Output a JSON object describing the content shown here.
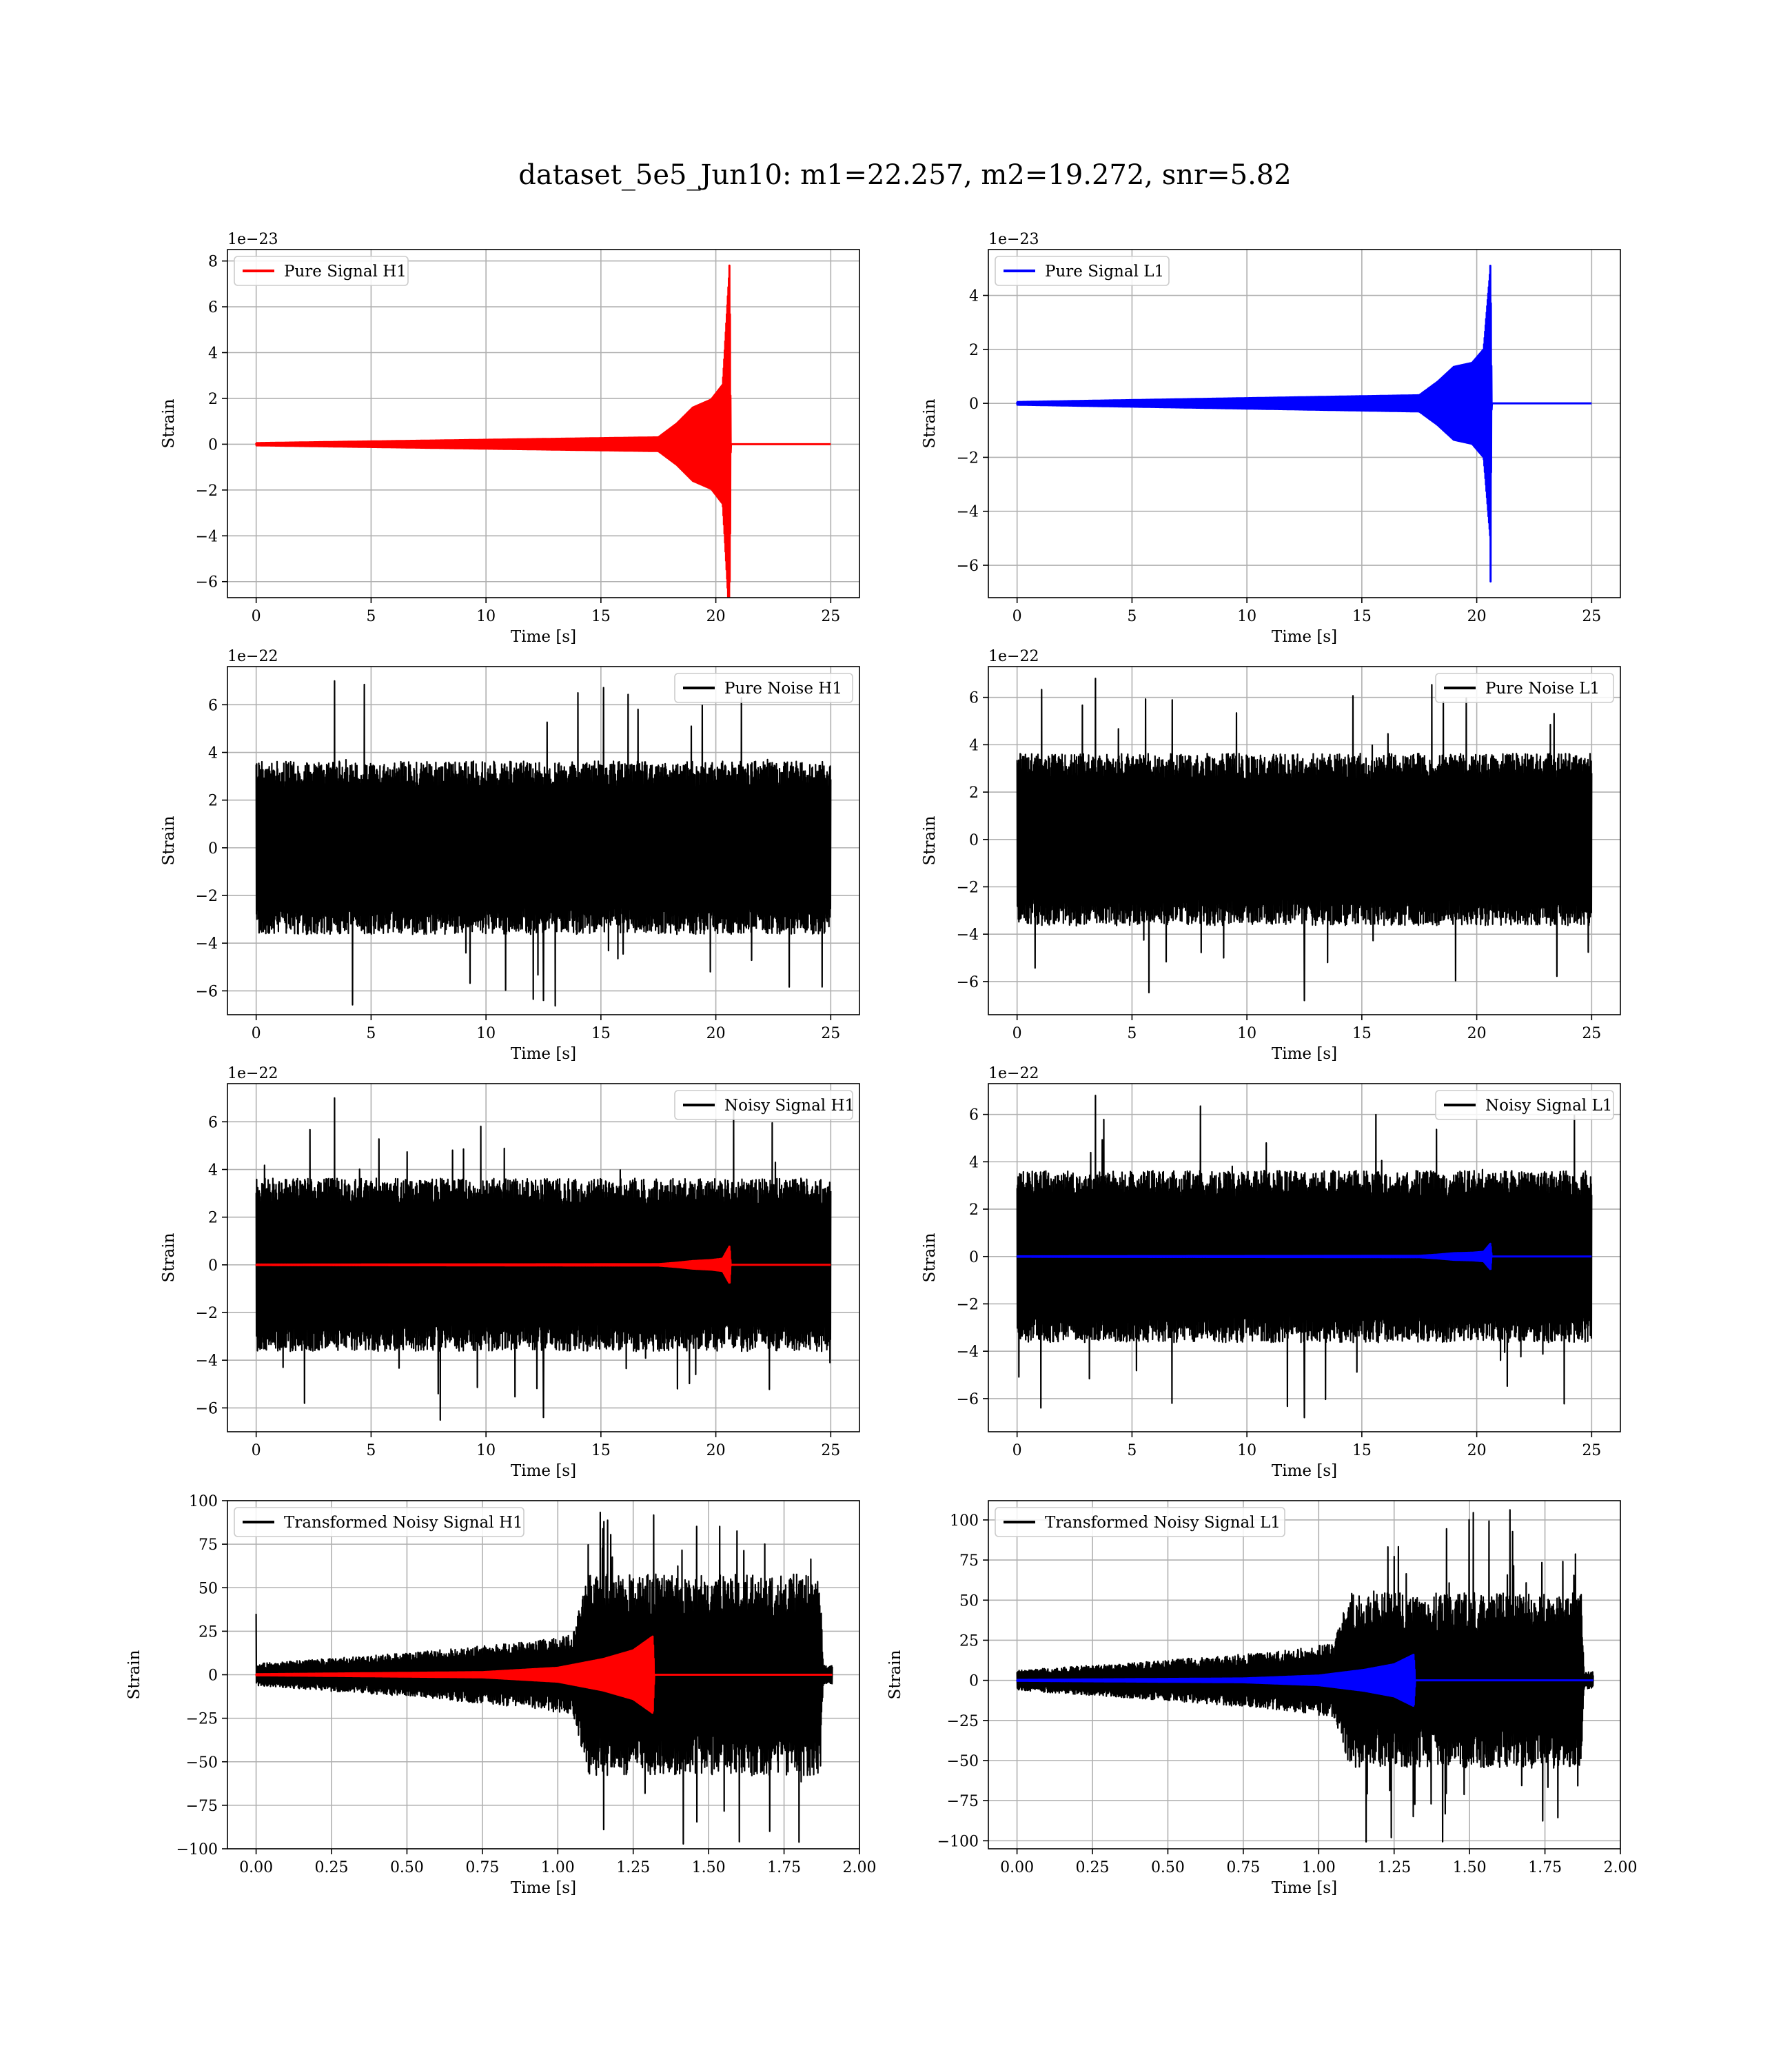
{
  "figure": {
    "title": "dataset_5e5_Jun10: m1=22.257, m2=19.272, snr=5.82",
    "colors": {
      "h1": "#ff0000",
      "l1": "#0000ff",
      "noise": "#000000",
      "grid": "#b0b0b0"
    }
  },
  "chart_data": [
    {
      "type": "line",
      "panel": "pure-signal-h1",
      "legend_position": "top-left",
      "grid": true,
      "xlabel": "Time [s]",
      "ylabel": "Strain",
      "offset_text": "1e−23",
      "xlim": [
        -1.25,
        26.25
      ],
      "ylim": [
        -6.7,
        8.5
      ],
      "xticks": [
        0,
        5,
        10,
        15,
        20,
        25
      ],
      "xtick_labels": [
        "0",
        "5",
        "10",
        "15",
        "20",
        "25"
      ],
      "yticks": [
        -6,
        -4,
        -2,
        0,
        2,
        4,
        6,
        8
      ],
      "ytick_labels": [
        "−6",
        "−4",
        "−2",
        "0",
        "2",
        "4",
        "6",
        "8"
      ],
      "series": [
        {
          "name": "Pure Signal H1",
          "color": "#ff0000",
          "kind": "chirp",
          "x_start": 0,
          "x_end": 25,
          "chirp_onset": 17.5,
          "merger": 20.6,
          "envelope": [
            [
              0,
              0.05
            ],
            [
              17.5,
              0.3
            ],
            [
              18.3,
              0.9
            ],
            [
              19.0,
              1.6
            ],
            [
              19.8,
              1.95
            ],
            [
              20.3,
              2.6
            ],
            [
              20.6,
              7.8
            ],
            [
              20.65,
              0
            ]
          ],
          "peak_max": 7.8,
          "peak_min": -6.0
        }
      ]
    },
    {
      "type": "line",
      "panel": "pure-signal-l1",
      "legend_position": "top-left",
      "grid": true,
      "xlabel": "Time [s]",
      "ylabel": "Strain",
      "offset_text": "1e−23",
      "xlim": [
        -1.25,
        26.25
      ],
      "ylim": [
        -7.2,
        5.7
      ],
      "xticks": [
        0,
        5,
        10,
        15,
        20,
        25
      ],
      "xtick_labels": [
        "0",
        "5",
        "10",
        "15",
        "20",
        "25"
      ],
      "yticks": [
        -6,
        -4,
        -2,
        0,
        2,
        4
      ],
      "ytick_labels": [
        "−6",
        "−4",
        "−2",
        "0",
        "2",
        "4"
      ],
      "series": [
        {
          "name": "Pure Signal L1",
          "color": "#0000ff",
          "kind": "chirp",
          "x_start": 0,
          "x_end": 25,
          "chirp_onset": 17.5,
          "merger": 20.6,
          "envelope": [
            [
              0,
              0.05
            ],
            [
              17.5,
              0.3
            ],
            [
              18.3,
              0.8
            ],
            [
              19.0,
              1.35
            ],
            [
              19.8,
              1.5
            ],
            [
              20.3,
              2.0
            ],
            [
              20.6,
              5.1
            ],
            [
              20.65,
              0
            ]
          ],
          "peak_max": 5.1,
          "peak_min": -6.6
        }
      ]
    },
    {
      "type": "line",
      "panel": "pure-noise-h1",
      "legend_position": "top-right",
      "grid": true,
      "xlabel": "Time [s]",
      "ylabel": "Strain",
      "offset_text": "1e−22",
      "xlim": [
        -1.25,
        26.25
      ],
      "ylim": [
        -7.0,
        7.6
      ],
      "xticks": [
        0,
        5,
        10,
        15,
        20,
        25
      ],
      "xtick_labels": [
        "0",
        "5",
        "10",
        "15",
        "20",
        "25"
      ],
      "yticks": [
        -6,
        -4,
        -2,
        0,
        2,
        4,
        6
      ],
      "ytick_labels": [
        "−6",
        "−4",
        "−2",
        "0",
        "2",
        "4",
        "6"
      ],
      "series": [
        {
          "name": "Pure Noise H1",
          "color": "#000000",
          "kind": "noise",
          "x_start": 0,
          "x_end": 25,
          "band": 3.3,
          "peak_max": 7.0,
          "peak_min": -6.4,
          "seed": 11
        }
      ]
    },
    {
      "type": "line",
      "panel": "pure-noise-l1",
      "legend_position": "top-right",
      "grid": true,
      "xlabel": "Time [s]",
      "ylabel": "Strain",
      "offset_text": "1e−22",
      "xlim": [
        -1.25,
        26.25
      ],
      "ylim": [
        -7.4,
        7.3
      ],
      "xticks": [
        0,
        5,
        10,
        15,
        20,
        25
      ],
      "xtick_labels": [
        "0",
        "5",
        "10",
        "15",
        "20",
        "25"
      ],
      "yticks": [
        -6,
        -4,
        -2,
        0,
        2,
        4,
        6
      ],
      "ytick_labels": [
        "−6",
        "−4",
        "−2",
        "0",
        "2",
        "4",
        "6"
      ],
      "series": [
        {
          "name": "Pure Noise L1",
          "color": "#000000",
          "kind": "noise",
          "x_start": 0,
          "x_end": 25,
          "band": 3.3,
          "peak_max": 6.8,
          "peak_min": -6.8,
          "seed": 23
        }
      ]
    },
    {
      "type": "line",
      "panel": "noisy-signal-h1",
      "legend_position": "top-right",
      "grid": true,
      "xlabel": "Time [s]",
      "ylabel": "Strain",
      "offset_text": "1e−22",
      "xlim": [
        -1.25,
        26.25
      ],
      "ylim": [
        -7.0,
        7.6
      ],
      "xticks": [
        0,
        5,
        10,
        15,
        20,
        25
      ],
      "xtick_labels": [
        "0",
        "5",
        "10",
        "15",
        "20",
        "25"
      ],
      "yticks": [
        -6,
        -4,
        -2,
        0,
        2,
        4,
        6
      ],
      "ytick_labels": [
        "−6",
        "−4",
        "−2",
        "0",
        "2",
        "4",
        "6"
      ],
      "series": [
        {
          "name": "Noisy Signal H1",
          "color": "#000000",
          "kind": "noise",
          "x_start": 0,
          "x_end": 25,
          "band": 3.3,
          "peak_max": 7.0,
          "peak_min": -6.4,
          "seed": 11
        },
        {
          "name": "",
          "color": "#ff0000",
          "kind": "chirp",
          "x_start": 0,
          "x_end": 25,
          "chirp_onset": 17.5,
          "merger": 20.6,
          "envelope": [
            [
              0,
              0.01
            ],
            [
              17.5,
              0.03
            ],
            [
              18.3,
              0.09
            ],
            [
              19.0,
              0.16
            ],
            [
              19.8,
              0.2
            ],
            [
              20.3,
              0.26
            ],
            [
              20.6,
              0.78
            ],
            [
              20.65,
              0
            ]
          ]
        }
      ]
    },
    {
      "type": "line",
      "panel": "noisy-signal-l1",
      "legend_position": "top-right",
      "grid": true,
      "xlabel": "Time [s]",
      "ylabel": "Strain",
      "offset_text": "1e−22",
      "xlim": [
        -1.25,
        26.25
      ],
      "ylim": [
        -7.4,
        7.3
      ],
      "xticks": [
        0,
        5,
        10,
        15,
        20,
        25
      ],
      "xtick_labels": [
        "0",
        "5",
        "10",
        "15",
        "20",
        "25"
      ],
      "yticks": [
        -6,
        -4,
        -2,
        0,
        2,
        4,
        6
      ],
      "ytick_labels": [
        "−6",
        "−4",
        "−2",
        "0",
        "2",
        "4",
        "6"
      ],
      "series": [
        {
          "name": "Noisy Signal L1",
          "color": "#000000",
          "kind": "noise",
          "x_start": 0,
          "x_end": 25,
          "band": 3.3,
          "peak_max": 6.8,
          "peak_min": -6.8,
          "seed": 23
        },
        {
          "name": "",
          "color": "#0000ff",
          "kind": "chirp",
          "x_start": 0,
          "x_end": 25,
          "chirp_onset": 17.5,
          "merger": 20.6,
          "envelope": [
            [
              0,
              0.01
            ],
            [
              17.5,
              0.03
            ],
            [
              18.3,
              0.08
            ],
            [
              19.0,
              0.14
            ],
            [
              19.8,
              0.16
            ],
            [
              20.3,
              0.2
            ],
            [
              20.6,
              0.55
            ],
            [
              20.65,
              0
            ]
          ]
        }
      ]
    },
    {
      "type": "line",
      "panel": "transformed-noisy-signal-h1",
      "legend_position": "top-left",
      "grid": true,
      "xlabel": "Time [s]",
      "ylabel": "Strain",
      "offset_text": "",
      "xlim": [
        -0.095,
        2.0
      ],
      "ylim": [
        -100,
        100
      ],
      "xticks": [
        0.0,
        0.25,
        0.5,
        0.75,
        1.0,
        1.25,
        1.5,
        1.75,
        2.0
      ],
      "xtick_labels": [
        "0.00",
        "0.25",
        "0.50",
        "0.75",
        "1.00",
        "1.25",
        "1.50",
        "1.75",
        "2.00"
      ],
      "yticks": [
        -100,
        -75,
        -50,
        -25,
        0,
        25,
        50,
        75,
        100
      ],
      "ytick_labels": [
        "−100",
        "−75",
        "−50",
        "−25",
        "0",
        "25",
        "50",
        "75",
        "100"
      ],
      "series": [
        {
          "name": "Transformed Noisy Signal H1",
          "color": "#000000",
          "kind": "transformed-noise",
          "x_start": 0,
          "x_end": 1.91,
          "envelope": [
            [
              0,
              6
            ],
            [
              0.5,
              12
            ],
            [
              0.9,
              18
            ],
            [
              1.05,
              22
            ],
            [
              1.1,
              55
            ],
            [
              1.87,
              55
            ],
            [
              1.88,
              5
            ],
            [
              1.91,
              5
            ]
          ],
          "spike_at_start": 35,
          "peak_max": 98,
          "peak_min": -93,
          "seed": 7
        },
        {
          "name": "",
          "color": "#ff0000",
          "kind": "chirp",
          "x_start": 0,
          "x_end": 1.91,
          "chirp_onset": 0.75,
          "merger": 1.315,
          "envelope": [
            [
              0,
              0.3
            ],
            [
              0.75,
              1.5
            ],
            [
              1.0,
              4
            ],
            [
              1.15,
              9
            ],
            [
              1.25,
              14
            ],
            [
              1.315,
              22
            ],
            [
              1.32,
              0
            ]
          ]
        }
      ]
    },
    {
      "type": "line",
      "panel": "transformed-noisy-signal-l1",
      "legend_position": "top-left",
      "grid": true,
      "xlabel": "Time [s]",
      "ylabel": "Strain",
      "offset_text": "",
      "xlim": [
        -0.095,
        2.0
      ],
      "ylim": [
        -105,
        112
      ],
      "xticks": [
        0.0,
        0.25,
        0.5,
        0.75,
        1.0,
        1.25,
        1.5,
        1.75,
        2.0
      ],
      "xtick_labels": [
        "0.00",
        "0.25",
        "0.50",
        "0.75",
        "1.00",
        "1.25",
        "1.50",
        "1.75",
        "2.00"
      ],
      "yticks": [
        -100,
        -75,
        -50,
        -25,
        0,
        25,
        50,
        75,
        100
      ],
      "ytick_labels": [
        "−100",
        "−75",
        "−50",
        "−25",
        "0",
        "25",
        "50",
        "75",
        "100"
      ],
      "series": [
        {
          "name": "Transformed Noisy Signal L1",
          "color": "#000000",
          "kind": "transformed-noise",
          "x_start": 0,
          "x_end": 1.91,
          "envelope": [
            [
              0,
              6
            ],
            [
              0.5,
              12
            ],
            [
              0.9,
              18
            ],
            [
              1.05,
              22
            ],
            [
              1.1,
              52
            ],
            [
              1.87,
              52
            ],
            [
              1.88,
              5
            ],
            [
              1.91,
              5
            ]
          ],
          "spike_at_start": 0,
          "peak_max": 107,
          "peak_min": -99,
          "seed": 19
        },
        {
          "name": "",
          "color": "#0000ff",
          "kind": "chirp",
          "x_start": 0,
          "x_end": 1.91,
          "chirp_onset": 0.75,
          "merger": 1.315,
          "envelope": [
            [
              0,
              0.3
            ],
            [
              0.75,
              1.2
            ],
            [
              1.0,
              3
            ],
            [
              1.15,
              6.5
            ],
            [
              1.25,
              10
            ],
            [
              1.315,
              16
            ],
            [
              1.32,
              0
            ]
          ]
        }
      ]
    }
  ]
}
